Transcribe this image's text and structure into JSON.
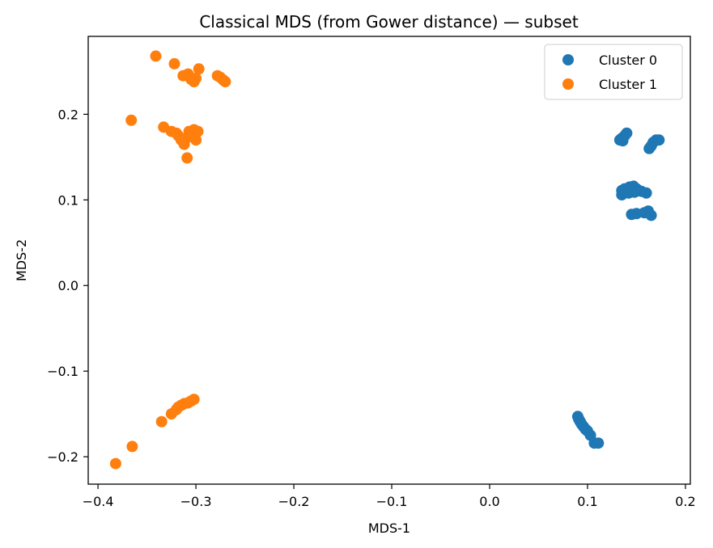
{
  "chart_data": {
    "type": "scatter",
    "title": "Classical MDS (from Gower distance) — subset",
    "xlabel": "MDS-1",
    "ylabel": "MDS-2",
    "xlim": [
      -0.41,
      0.205
    ],
    "ylim": [
      -0.232,
      0.291
    ],
    "xticks": [
      -0.4,
      -0.3,
      -0.2,
      -0.1,
      0.0,
      0.1,
      0.2
    ],
    "xtick_labels": [
      "−0.4",
      "−0.3",
      "−0.2",
      "−0.1",
      "0.0",
      "0.1",
      "0.2"
    ],
    "yticks": [
      -0.2,
      -0.1,
      0.0,
      0.1,
      0.2
    ],
    "ytick_labels": [
      "−0.2",
      "−0.1",
      "0.0",
      "0.1",
      "0.2"
    ],
    "legend_position": "top-right",
    "series": [
      {
        "name": "Cluster 0",
        "color": "#1f77b4",
        "points": [
          [
            0.135,
            0.172
          ],
          [
            0.138,
            0.175
          ],
          [
            0.14,
            0.178
          ],
          [
            0.133,
            0.17
          ],
          [
            0.136,
            0.169
          ],
          [
            0.165,
            0.163
          ],
          [
            0.167,
            0.167
          ],
          [
            0.17,
            0.17
          ],
          [
            0.163,
            0.16
          ],
          [
            0.173,
            0.17
          ],
          [
            0.135,
            0.111
          ],
          [
            0.138,
            0.113
          ],
          [
            0.14,
            0.11
          ],
          [
            0.143,
            0.115
          ],
          [
            0.145,
            0.112
          ],
          [
            0.147,
            0.116
          ],
          [
            0.15,
            0.113
          ],
          [
            0.152,
            0.111
          ],
          [
            0.155,
            0.11
          ],
          [
            0.16,
            0.108
          ],
          [
            0.135,
            0.106
          ],
          [
            0.142,
            0.108
          ],
          [
            0.148,
            0.109
          ],
          [
            0.145,
            0.083
          ],
          [
            0.15,
            0.084
          ],
          [
            0.158,
            0.085
          ],
          [
            0.162,
            0.087
          ],
          [
            0.165,
            0.082
          ],
          [
            0.09,
            -0.153
          ],
          [
            0.091,
            -0.156
          ],
          [
            0.092,
            -0.158
          ],
          [
            0.093,
            -0.16
          ],
          [
            0.094,
            -0.162
          ],
          [
            0.096,
            -0.165
          ],
          [
            0.098,
            -0.168
          ],
          [
            0.1,
            -0.17
          ],
          [
            0.103,
            -0.175
          ],
          [
            0.107,
            -0.184
          ],
          [
            0.111,
            -0.184
          ]
        ]
      },
      {
        "name": "Cluster 1",
        "color": "#ff7f0e",
        "points": [
          [
            -0.341,
            0.268
          ],
          [
            -0.322,
            0.259
          ],
          [
            -0.297,
            0.253
          ],
          [
            -0.313,
            0.245
          ],
          [
            -0.308,
            0.247
          ],
          [
            -0.305,
            0.241
          ],
          [
            -0.302,
            0.238
          ],
          [
            -0.3,
            0.242
          ],
          [
            -0.278,
            0.245
          ],
          [
            -0.275,
            0.243
          ],
          [
            -0.272,
            0.24
          ],
          [
            -0.27,
            0.238
          ],
          [
            -0.366,
            0.193
          ],
          [
            -0.333,
            0.185
          ],
          [
            -0.325,
            0.18
          ],
          [
            -0.32,
            0.178
          ],
          [
            -0.318,
            0.175
          ],
          [
            -0.315,
            0.17
          ],
          [
            -0.312,
            0.165
          ],
          [
            -0.31,
            0.172
          ],
          [
            -0.307,
            0.18
          ],
          [
            -0.305,
            0.175
          ],
          [
            -0.302,
            0.182
          ],
          [
            -0.298,
            0.18
          ],
          [
            -0.3,
            0.17
          ],
          [
            -0.309,
            0.149
          ],
          [
            -0.302,
            -0.133
          ],
          [
            -0.305,
            -0.135
          ],
          [
            -0.308,
            -0.137
          ],
          [
            -0.312,
            -0.138
          ],
          [
            -0.315,
            -0.14
          ],
          [
            -0.318,
            -0.142
          ],
          [
            -0.32,
            -0.145
          ],
          [
            -0.325,
            -0.15
          ],
          [
            -0.335,
            -0.159
          ],
          [
            -0.365,
            -0.188
          ],
          [
            -0.382,
            -0.208
          ]
        ]
      }
    ]
  }
}
